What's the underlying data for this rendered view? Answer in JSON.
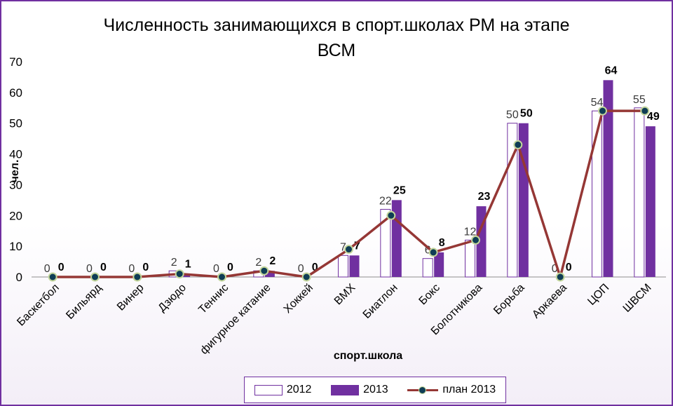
{
  "chart_data": {
    "type": "bar",
    "title": "Численность занимающихся в спорт.школах РМ на этапе\nВСМ",
    "xlabel": "спорт.школа",
    "ylabel": "чел.",
    "ylim": [
      0,
      70
    ],
    "yticks": [
      0,
      10,
      20,
      30,
      40,
      50,
      60,
      70
    ],
    "categories": [
      "Баскетбол",
      "Бильярд",
      "Винер",
      "Дзюдо",
      "Теннис",
      "фигурное катание",
      "Хоккей",
      "ВМХ",
      "Биатлон",
      "Бокс",
      "Болотникова",
      "Борьба",
      "Аркаева",
      "ЦОП",
      "ШВСМ"
    ],
    "series": [
      {
        "name": "2012",
        "kind": "bar",
        "values": [
          0,
          0,
          0,
          2,
          0,
          2,
          0,
          7,
          22,
          6,
          12,
          50,
          0,
          54,
          55
        ]
      },
      {
        "name": "2013",
        "kind": "bar",
        "values": [
          0,
          0,
          0,
          1,
          0,
          2,
          0,
          7,
          25,
          8,
          23,
          50,
          0,
          64,
          49
        ]
      },
      {
        "name": "план 2013",
        "kind": "line",
        "values": [
          0,
          0,
          0,
          1,
          0,
          2,
          0,
          9,
          20,
          8,
          12,
          43,
          0,
          54,
          54
        ]
      }
    ],
    "grid": false,
    "legend_position": "bottom",
    "colors": {
      "bar2012_fill": "#ffffff",
      "bar2012_stroke": "#7030a0",
      "bar2013": "#7030a0",
      "plan_line": "#953735",
      "plan_marker": "#0f3d55",
      "plan_marker_edge": "#c3d69b"
    }
  }
}
